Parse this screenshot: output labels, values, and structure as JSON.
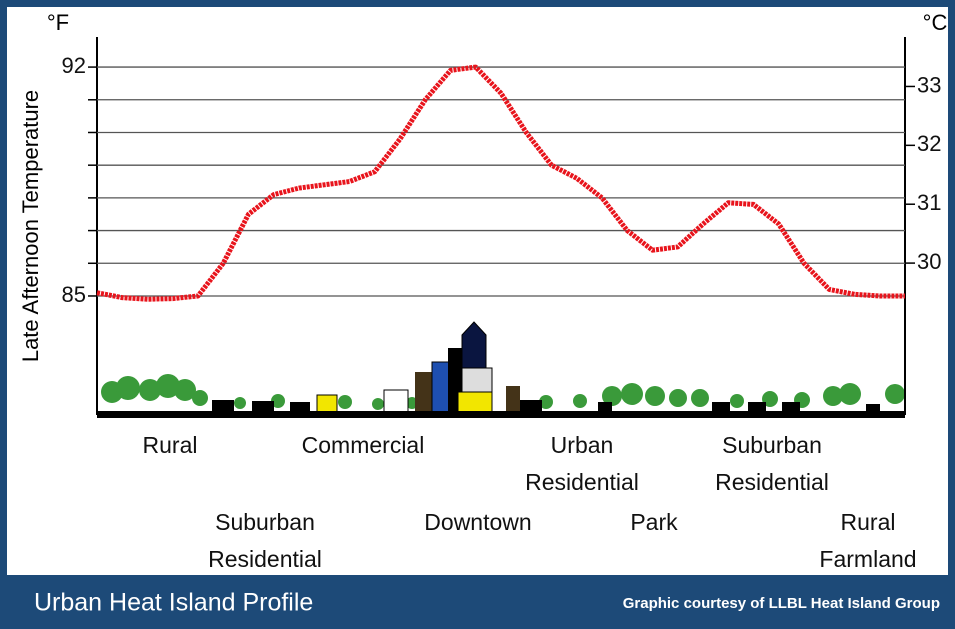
{
  "chart_data": {
    "type": "line",
    "y_label": "Late Afternoon Temperature",
    "y_unit": "°F",
    "y2_unit": "°C",
    "ylim": [
      81.36,
      92.92
    ],
    "yticks": [
      85,
      92
    ],
    "minor_yticks": [
      85,
      86,
      87,
      88,
      89,
      90,
      91,
      92
    ],
    "y2lim": [
      27.42,
      33.84
    ],
    "y2ticks": [
      30,
      31,
      32,
      33
    ],
    "grid": true,
    "series": [
      {
        "color": "#e8141c",
        "values": [
          85.1,
          84.95,
          84.9,
          84.92,
          85.0,
          86.0,
          87.5,
          88.1,
          88.3,
          88.4,
          88.5,
          88.8,
          89.8,
          91.0,
          91.9,
          92.0,
          91.2,
          90.0,
          89.0,
          88.6,
          88.0,
          87.0,
          86.4,
          86.5,
          87.2,
          87.85,
          87.8,
          87.2,
          86.0,
          85.2,
          85.05,
          85.0,
          85.0
        ]
      }
    ],
    "zones": [
      [
        "Rural"
      ],
      [
        "Suburban",
        "Residential"
      ],
      [
        "Commercial"
      ],
      [
        "Downtown"
      ],
      [
        "Urban",
        "Residential"
      ],
      [
        "Park"
      ],
      [
        "Suburban",
        "Residential"
      ],
      [
        "Rural",
        "Farmland"
      ]
    ]
  },
  "footer": {
    "title": "Urban Heat Island Profile",
    "credit": "Graphic courtesy of LLBL Heat Island Group"
  }
}
